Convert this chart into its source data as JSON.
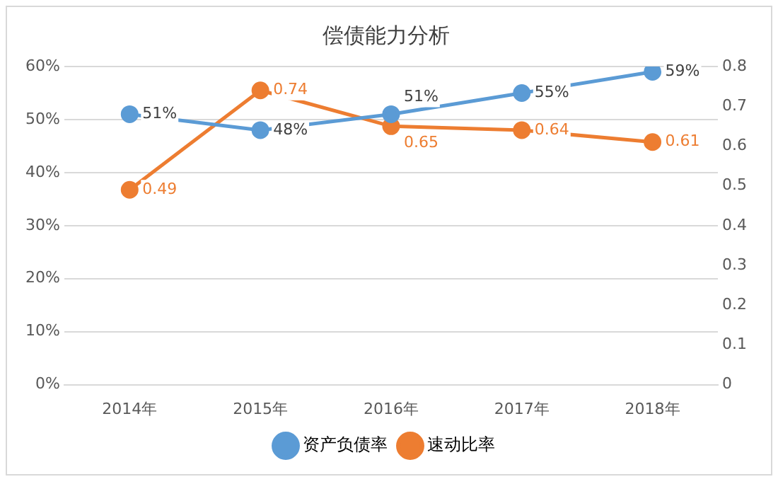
{
  "chart_data": {
    "type": "line",
    "title": "偿债能力分析",
    "categories": [
      "2014年",
      "2015年",
      "2016年",
      "2017年",
      "2018年"
    ],
    "series": [
      {
        "name": "资产负债率",
        "color": "#5b9bd5",
        "values": [
          51,
          48,
          51,
          55,
          59
        ],
        "value_labels": [
          "51%",
          "48%",
          "51%",
          "55%",
          "59%"
        ]
      },
      {
        "name": "速动比率",
        "color": "#ed7d31",
        "values": [
          0.49,
          0.74,
          0.65,
          0.64,
          0.61
        ],
        "value_labels": [
          "0.49",
          "0.74",
          "0.65",
          "0.64",
          "0.61"
        ],
        "axis": "y2"
      }
    ],
    "ylim": [
      0,
      60
    ],
    "yticks": [
      {
        "value": 0,
        "label": "0%"
      },
      {
        "value": 10,
        "label": "10%"
      },
      {
        "value": 20,
        "label": "20%"
      },
      {
        "value": 30,
        "label": "30%"
      },
      {
        "value": 40,
        "label": "40%"
      },
      {
        "value": 50,
        "label": "50%"
      },
      {
        "value": 60,
        "label": "60%"
      }
    ],
    "y2lim": [
      0,
      0.8
    ],
    "y2ticks": [
      0,
      0.1,
      0.2,
      0.3,
      0.4,
      0.5,
      0.6,
      0.7,
      0.8
    ],
    "grid": "y",
    "legend": "bottom",
    "marker": "circle",
    "line_style": "solid"
  }
}
